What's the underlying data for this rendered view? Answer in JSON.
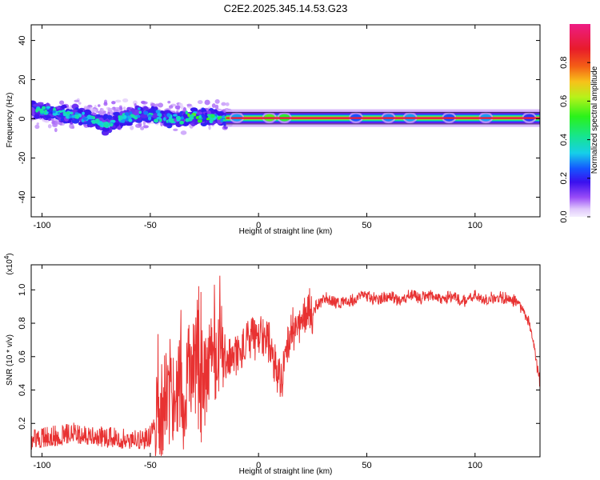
{
  "title": "C2E2.2025.345.14.53.G23",
  "chart_data": [
    {
      "type": "heatmap",
      "xlabel": "Height of straight line (km)",
      "ylabel": "Frequency (Hz)",
      "xlim": [
        -105,
        130
      ],
      "ylim": [
        -50,
        48
      ],
      "xticks": [
        -100,
        -50,
        0,
        50,
        100
      ],
      "yticks": [
        -40,
        -20,
        0,
        20,
        40
      ],
      "colorbar": {
        "label": "Normalized spectral amplitude",
        "range": [
          0,
          1
        ],
        "ticks": [
          0.0,
          0.2,
          0.4,
          0.6,
          0.8
        ],
        "colormap": "rainbow (violet-blue-cyan-green-yellow-red-magenta)"
      },
      "description_points": [
        {
          "x": -100,
          "y": 4,
          "v": 0.45
        },
        {
          "x": -85,
          "y": 2,
          "v": 0.35
        },
        {
          "x": -70,
          "y": -3,
          "v": 0.3
        },
        {
          "x": -55,
          "y": 3,
          "v": 0.35
        },
        {
          "x": -40,
          "y": 0,
          "v": 0.3
        },
        {
          "x": -25,
          "y": 1,
          "v": 0.45
        },
        {
          "x": -15,
          "y": 0,
          "v": 0.7
        },
        {
          "x": 5,
          "y": 1,
          "v": 0.85
        },
        {
          "x": 30,
          "y": 0,
          "v": 0.95
        },
        {
          "x": 60,
          "y": 0,
          "v": 0.95
        },
        {
          "x": 90,
          "y": 0,
          "v": 0.95
        },
        {
          "x": 120,
          "y": 0,
          "v": 0.95
        }
      ]
    },
    {
      "type": "line",
      "xlabel": "Height of straight line (km)",
      "ylabel": "SNR (10 * v/v)",
      "yscale_label": "(x10",
      "yscale_exp": "4",
      "xlim": [
        -105,
        130
      ],
      "ylim": [
        0,
        1.15
      ],
      "xticks": [
        -100,
        -50,
        0,
        50,
        100
      ],
      "yticks": [
        0.2,
        0.4,
        0.6,
        0.8,
        1.0
      ],
      "ytick_labels": [
        "0.2",
        "0.4",
        "0.6",
        "0.8",
        "1.0"
      ],
      "color": "#e83232",
      "series": [
        {
          "x": [
            -105,
            -95,
            -85,
            -75,
            -65,
            -55,
            -50,
            -45,
            -40,
            -35,
            -30,
            -25,
            -20,
            -15,
            -10,
            -5,
            0,
            5,
            10,
            15,
            20,
            25,
            30,
            35,
            40,
            45,
            50,
            55,
            60,
            65,
            70,
            75,
            80,
            85,
            90,
            95,
            100,
            105,
            110,
            115,
            120,
            125,
            130
          ],
          "values": [
            0.08,
            0.1,
            0.12,
            0.1,
            0.09,
            0.08,
            0.1,
            0.3,
            0.4,
            0.42,
            0.45,
            0.5,
            0.6,
            0.55,
            0.62,
            0.68,
            0.72,
            0.7,
            0.45,
            0.75,
            0.82,
            0.88,
            0.95,
            0.93,
            0.92,
            0.94,
            0.97,
            0.95,
            0.96,
            0.94,
            0.97,
            0.95,
            0.96,
            0.94,
            0.97,
            0.93,
            0.96,
            0.94,
            0.95,
            0.95,
            0.92,
            0.8,
            0.45
          ]
        }
      ]
    }
  ]
}
